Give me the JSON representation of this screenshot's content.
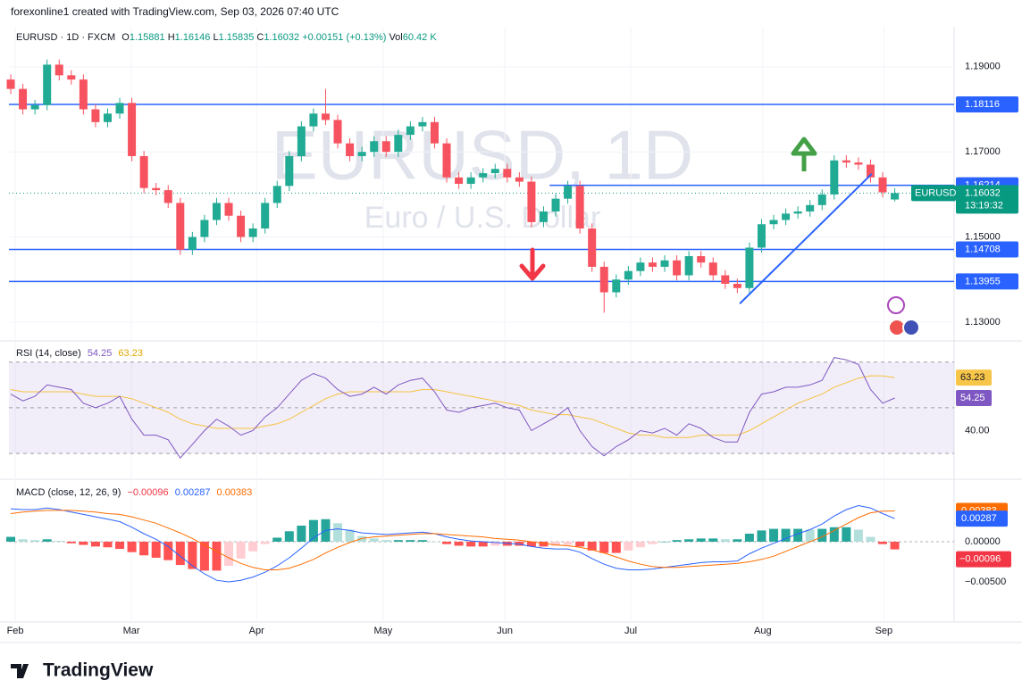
{
  "header": "forexonline1 created with TradingView.com, Sep 03, 2026 07:40 UTC",
  "branding": "TradingView",
  "chart_data": {
    "type": "candlestick",
    "symbol_title": "EURUSD · 1D · FXCM",
    "legend_labels": {
      "o": "O",
      "h": "H",
      "l": "L",
      "c": "C",
      "vol": "Vol"
    },
    "change": "+0.00151 (+0.13%)",
    "volume": "60.42 K",
    "watermark": "EURUSD, 1D",
    "watermark_sub": "Euro / U.S. Dollar",
    "symbol": "EURUSD",
    "countdown": "13:19:32",
    "up_color": "#22ab94",
    "down_color": "#f7525f",
    "open": [
      1.187,
      1.1848,
      1.18,
      1.181,
      1.1905,
      1.188,
      1.187,
      1.18,
      1.177,
      1.179,
      1.1815,
      1.169,
      1.1615,
      1.161,
      1.158,
      1.147,
      1.15,
      1.154,
      1.158,
      1.155,
      1.15,
      1.152,
      1.158,
      1.162,
      1.169,
      1.176,
      1.179,
      1.1775,
      1.172,
      1.169,
      1.17,
      1.1725,
      1.17,
      1.174,
      1.176,
      1.177,
      1.172,
      1.164,
      1.1625,
      1.164,
      1.165,
      1.166,
      1.164,
      1.163,
      1.1535,
      1.156,
      1.159,
      1.162,
      1.152,
      1.143,
      1.137,
      1.14,
      1.142,
      1.144,
      1.143,
      1.1445,
      1.141,
      1.1455,
      1.144,
      1.141,
      1.139,
      1.138,
      1.1475,
      1.153,
      1.154,
      1.1555,
      1.156,
      1.1575,
      1.16,
      1.168,
      1.1675,
      1.167,
      1.164,
      1.15881
    ],
    "high": [
      1.1882,
      1.186,
      1.1822,
      1.1917,
      1.1917,
      1.1892,
      1.1882,
      1.1812,
      1.1802,
      1.1827,
      1.1827,
      1.1702,
      1.1627,
      1.1622,
      1.1592,
      1.1512,
      1.1552,
      1.1592,
      1.1592,
      1.1562,
      1.1532,
      1.1592,
      1.1632,
      1.1702,
      1.1772,
      1.1802,
      1.1848,
      1.1787,
      1.1732,
      1.1712,
      1.1737,
      1.1737,
      1.1752,
      1.1772,
      1.1782,
      1.1782,
      1.1732,
      1.1652,
      1.1652,
      1.1662,
      1.1672,
      1.1672,
      1.1652,
      1.1642,
      1.1572,
      1.1602,
      1.1632,
      1.1632,
      1.1532,
      1.1442,
      1.1412,
      1.1432,
      1.1452,
      1.1452,
      1.1457,
      1.1457,
      1.1467,
      1.1467,
      1.1452,
      1.1422,
      1.1402,
      1.1487,
      1.1542,
      1.1552,
      1.1567,
      1.1572,
      1.1587,
      1.1612,
      1.1692,
      1.1692,
      1.1687,
      1.1682,
      1.1652,
      1.16146
    ],
    "low": [
      1.1836,
      1.1788,
      1.1788,
      1.1798,
      1.1868,
      1.1858,
      1.1788,
      1.1758,
      1.1758,
      1.1778,
      1.1678,
      1.1603,
      1.1598,
      1.1568,
      1.1458,
      1.1458,
      1.1488,
      1.1528,
      1.1538,
      1.1488,
      1.1488,
      1.1508,
      1.1568,
      1.1608,
      1.1678,
      1.1748,
      1.1763,
      1.1708,
      1.1678,
      1.1678,
      1.1688,
      1.1688,
      1.1688,
      1.1728,
      1.1748,
      1.1708,
      1.1628,
      1.1613,
      1.1613,
      1.1628,
      1.1638,
      1.1628,
      1.1618,
      1.1523,
      1.1523,
      1.1548,
      1.1578,
      1.1508,
      1.1418,
      1.1322,
      1.1358,
      1.1388,
      1.1408,
      1.1418,
      1.1418,
      1.1398,
      1.1398,
      1.1428,
      1.1398,
      1.1378,
      1.1368,
      1.1368,
      1.1463,
      1.1518,
      1.1528,
      1.1543,
      1.1548,
      1.1563,
      1.1588,
      1.1663,
      1.1658,
      1.1628,
      1.1593,
      1.15835
    ],
    "close": [
      1.1848,
      1.18,
      1.181,
      1.1905,
      1.188,
      1.187,
      1.18,
      1.177,
      1.179,
      1.1815,
      1.169,
      1.1615,
      1.161,
      1.158,
      1.147,
      1.15,
      1.154,
      1.158,
      1.155,
      1.15,
      1.152,
      1.158,
      1.162,
      1.169,
      1.176,
      1.179,
      1.1775,
      1.172,
      1.169,
      1.17,
      1.1725,
      1.17,
      1.174,
      1.176,
      1.177,
      1.172,
      1.164,
      1.1625,
      1.164,
      1.165,
      1.166,
      1.164,
      1.163,
      1.1535,
      1.156,
      1.159,
      1.162,
      1.152,
      1.143,
      1.137,
      1.14,
      1.142,
      1.144,
      1.143,
      1.1445,
      1.141,
      1.1455,
      1.144,
      1.141,
      1.139,
      1.138,
      1.1475,
      1.153,
      1.154,
      1.1555,
      1.156,
      1.1575,
      1.16,
      1.168,
      1.1675,
      1.167,
      1.164,
      1.1605,
      1.16032
    ],
    "xlim": [
      -0.15,
      77.9
    ],
    "xticks": [
      {
        "value": 0.37,
        "label": "Feb"
      },
      {
        "value": 9.96,
        "label": "Mar"
      },
      {
        "value": 20.3,
        "label": "Apr"
      },
      {
        "value": 30.75,
        "label": "May"
      },
      {
        "value": 40.8,
        "label": "Jun"
      },
      {
        "value": 51.2,
        "label": "Jul"
      },
      {
        "value": 62.1,
        "label": "Aug"
      },
      {
        "value": 72.1,
        "label": "Sep"
      }
    ],
    "ylim": [
      1.126,
      1.1994
    ],
    "yticks": [
      {
        "value": 1.13,
        "label": "1.13000"
      },
      {
        "value": 1.15,
        "label": "1.15000"
      },
      {
        "value": 1.17,
        "label": "1.17000"
      },
      {
        "value": 1.19,
        "label": "1.19000"
      }
    ],
    "grid": true,
    "line_color": "#2962ff",
    "horizontal_lines": [
      {
        "value": 1.18116
      },
      {
        "value": 1.16214,
        "x0": 44.5
      },
      {
        "value": 1.14708
      },
      {
        "value": 1.13955
      }
    ],
    "trendline": {
      "x": [
        60.2,
        71.1
      ],
      "y": [
        1.13434,
        1.16484
      ]
    },
    "rsi": {
      "title": "RSI (14, close)",
      "color": "#7e57c2",
      "values": [
        56,
        53,
        55,
        60,
        59,
        58,
        52,
        50,
        52,
        55,
        45,
        38,
        38,
        36,
        28,
        34,
        40,
        45,
        42,
        38,
        40,
        46,
        50,
        56,
        62,
        65,
        63,
        58,
        55,
        56,
        59,
        56,
        60,
        62,
        63,
        57,
        49,
        48,
        50,
        51,
        52,
        50,
        49,
        40,
        43,
        46,
        50,
        40,
        33,
        29,
        33,
        36,
        40,
        39,
        41,
        38,
        43,
        41,
        37,
        35,
        35,
        48,
        56,
        57,
        59,
        59,
        60,
        62,
        72,
        71,
        69,
        58,
        52,
        54.25
      ],
      "ma": {
        "color": "#f5c242",
        "values": [
          58,
          57,
          57,
          57,
          57,
          57,
          56,
          55,
          55,
          55,
          54,
          52,
          50,
          48,
          45,
          43,
          42,
          41,
          41,
          41,
          41,
          42,
          43,
          45,
          48,
          51,
          54,
          56,
          57,
          57,
          57,
          57,
          57,
          57,
          58,
          58,
          57,
          56,
          55,
          54,
          53,
          52,
          51,
          49,
          48,
          47,
          47,
          46,
          45,
          43,
          41,
          39,
          38,
          38,
          37,
          37,
          37,
          38,
          38,
          38,
          38,
          40,
          43,
          46,
          49,
          52,
          54,
          56,
          59,
          61,
          63,
          64,
          64,
          63.23
        ]
      },
      "ylim": [
        19.5,
        78.1
      ],
      "yticks": [
        {
          "value": 40,
          "label": "40.00"
        }
      ],
      "bands": [
        30,
        70
      ],
      "middle": 50
    },
    "macd": {
      "title": "MACD (close, 12, 26, 9)",
      "macd": {
        "color": "#2962ff",
        "values": [
          0.0041,
          0.004,
          0.004,
          0.0042,
          0.004,
          0.0037,
          0.0034,
          0.0031,
          0.0028,
          0.0025,
          0.0018,
          0.001,
          0.0003,
          -0.0006,
          -0.0018,
          -0.003,
          -0.004,
          -0.0048,
          -0.005,
          -0.0048,
          -0.0044,
          -0.0038,
          -0.003,
          -0.002,
          -0.0008,
          0.0005,
          0.0014,
          0.0016,
          0.0014,
          0.0011,
          0.001,
          0.0009,
          0.001,
          0.0011,
          0.0012,
          0.001,
          0.0006,
          0.0003,
          0.0001,
          0,
          -0.0001,
          -0.0002,
          -0.0003,
          -0.0006,
          -0.0008,
          -0.0009,
          -0.0009,
          -0.0013,
          -0.0021,
          -0.0028,
          -0.0033,
          -0.0035,
          -0.0035,
          -0.0034,
          -0.0032,
          -0.003,
          -0.0028,
          -0.0026,
          -0.0025,
          -0.0025,
          -0.0024,
          -0.0015,
          -0.0008,
          -0.0002,
          0.0004,
          0.001,
          0.0015,
          0.0022,
          0.0032,
          0.004,
          0.0045,
          0.0042,
          0.0035,
          0.00287
        ]
      },
      "signal": {
        "color": "#ff6d00",
        "values": [
          0.0035,
          0.0037,
          0.0038,
          0.0039,
          0.0039,
          0.0039,
          0.0038,
          0.0037,
          0.0035,
          0.0034,
          0.0031,
          0.0027,
          0.0023,
          0.0017,
          0.0011,
          0.0004,
          -0.0004,
          -0.0012,
          -0.002,
          -0.0027,
          -0.0032,
          -0.0035,
          -0.0035,
          -0.0033,
          -0.0028,
          -0.0022,
          -0.0014,
          -0.0007,
          -0.0001,
          0.0004,
          0.0006,
          0.0007,
          0.0008,
          0.0009,
          0.001,
          0.001,
          0.0009,
          0.0008,
          0.0007,
          0.0006,
          0.0004,
          0.0003,
          0.0002,
          0,
          -0.0002,
          -0.0004,
          -0.0005,
          -0.0007,
          -0.001,
          -0.0014,
          -0.0019,
          -0.0024,
          -0.0028,
          -0.0031,
          -0.0032,
          -0.0032,
          -0.0031,
          -0.003,
          -0.0029,
          -0.0028,
          -0.0027,
          -0.0025,
          -0.0022,
          -0.0018,
          -0.0012,
          -0.0006,
          0,
          0.0006,
          0.0014,
          0.0022,
          0.003,
          0.0036,
          0.0038,
          0.00383
        ]
      },
      "histogram": {
        "colors": {
          "up_rising": "#26a69a",
          "up_falling": "#b2dfdb",
          "down_falling": "#ff5252",
          "down_rising": "#ffcdd2"
        },
        "values": [
          0.0006,
          0.0003,
          0.0002,
          0.0003,
          0.0001,
          -0.0002,
          -0.0004,
          -0.0006,
          -0.0007,
          -0.0009,
          -0.0013,
          -0.0017,
          -0.002,
          -0.0023,
          -0.0029,
          -0.0034,
          -0.0036,
          -0.0036,
          -0.003,
          -0.0021,
          -0.0012,
          -0.0003,
          0.0005,
          0.0013,
          0.002,
          0.0027,
          0.0028,
          0.0023,
          0.0015,
          0.0007,
          0.0004,
          0.0002,
          0.0002,
          0.0002,
          0.0002,
          0,
          -0.0003,
          -0.0005,
          -0.0006,
          -0.0006,
          -0.0005,
          -0.0005,
          -0.0005,
          -0.0006,
          -0.0006,
          -0.0005,
          -0.0004,
          -0.0006,
          -0.0011,
          -0.0014,
          -0.0014,
          -0.0011,
          -0.0007,
          -0.0003,
          0,
          0.0002,
          0.0003,
          0.0004,
          0.0004,
          0.0003,
          0.0003,
          0.001,
          0.0014,
          0.0016,
          0.0016,
          0.0016,
          0.0015,
          0.0016,
          0.0018,
          0.0018,
          0.0015,
          0.0006,
          -0.0003,
          -0.00096
        ],
        "last_value_label": "−0.00096"
      },
      "ylim": [
        -0.00978,
        0.00744
      ],
      "yticks": [
        {
          "value": 0,
          "label": "0.00000"
        },
        {
          "value": -0.005,
          "label": "−0.00500"
        }
      ]
    }
  }
}
